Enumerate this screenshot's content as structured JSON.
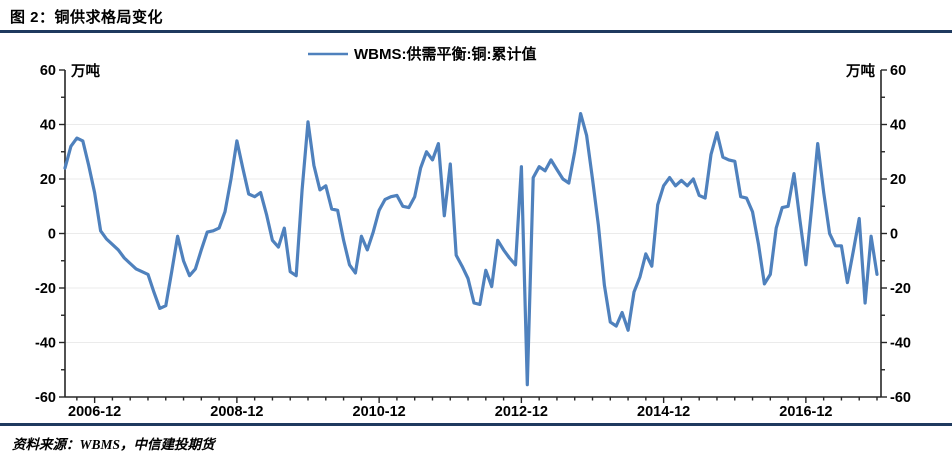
{
  "header": {
    "title": "图 2：铜供求格局变化"
  },
  "footer": {
    "source": "资料来源：WBMS，中信建投期货"
  },
  "colors": {
    "accent_rule": "#1f3a5f",
    "line": "#4f81bd",
    "grid": "#ebebeb",
    "axis": "#262626",
    "label": "#000000"
  },
  "chart_data": {
    "type": "line",
    "title": "",
    "legend": [
      "WBMS:供需平衡:铜:累计值"
    ],
    "legend_position": "top-center",
    "unit_left": "万吨",
    "unit_right": "万吨",
    "ylim": [
      -60,
      60
    ],
    "y_tick_step": 20,
    "y_minor_step": 10,
    "grid": "horizontal-light",
    "x_start": "2006-07",
    "x_freq": "monthly",
    "x_minor_tick_months": 3,
    "x_tick_labels": [
      "2006-12",
      "2008-12",
      "2010-12",
      "2012-12",
      "2014-12",
      "2016-12"
    ],
    "series": [
      {
        "name": "WBMS:供需平衡:铜:累计值",
        "color": "#4f81bd",
        "values": [
          24,
          32,
          35,
          34,
          25,
          15,
          1,
          -2,
          -4,
          -6,
          -9,
          -11,
          -13,
          -14,
          -15,
          -21.5,
          -27.5,
          -26.5,
          -14,
          -1,
          -10,
          -15.5,
          -13,
          -6,
          0.5,
          1,
          2,
          8,
          20,
          34,
          24,
          14.5,
          13.5,
          15,
          7,
          -2.5,
          -5,
          2,
          -14,
          -15.5,
          16,
          41,
          25,
          16,
          17.5,
          9,
          8.5,
          -2.5,
          -11.5,
          -14.5,
          -1,
          -6,
          0.5,
          8.5,
          12.5,
          13.5,
          14,
          10,
          9.5,
          13.5,
          24,
          30,
          27,
          33,
          6.5,
          25.5,
          -8,
          -12,
          -16.5,
          -25.5,
          -26,
          -13.5,
          -19.5,
          -2.5,
          -6,
          -9,
          -11.5,
          24.5,
          -55.5,
          20.5,
          24.5,
          23,
          27,
          23.5,
          20,
          18.5,
          30,
          44,
          36,
          20,
          3,
          -19,
          -32.5,
          -34,
          -29,
          -35.5,
          -21.5,
          -16,
          -7.5,
          -12,
          10.5,
          17.5,
          20.5,
          17.5,
          19.5,
          17.5,
          20,
          14,
          13,
          29,
          37,
          28,
          27,
          26.5,
          13.5,
          13,
          8,
          -4,
          -18.5,
          -15,
          2,
          9.5,
          10,
          22,
          5,
          -11.5,
          10,
          33,
          15,
          0,
          -4.5,
          -4.5,
          -18,
          -6.5,
          5.5,
          -25.5,
          -1,
          -15
        ]
      }
    ]
  }
}
